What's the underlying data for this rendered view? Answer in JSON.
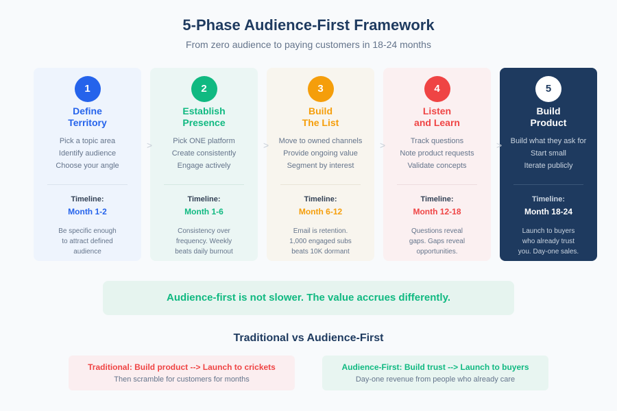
{
  "header": {
    "title": "5-Phase Audience-First Framework",
    "subtitle": "From zero audience to paying customers in 18-24 months"
  },
  "separator": ">",
  "phases": [
    {
      "number": 1,
      "title": [
        "Define",
        "Territory"
      ],
      "items": [
        "Pick a topic area",
        "Identify audience",
        "Choose your angle"
      ],
      "timeline_label": "Timeline:",
      "timeline": "Month 1-2",
      "note": [
        "Be specific enough",
        "to attract defined",
        "audience"
      ]
    },
    {
      "number": 2,
      "title": [
        "Establish",
        "Presence"
      ],
      "items": [
        "Pick ONE platform",
        "Create consistently",
        "Engage actively"
      ],
      "timeline_label": "Timeline:",
      "timeline": "Month 1-6",
      "note": [
        "Consistency over",
        "frequency. Weekly",
        "beats daily burnout"
      ]
    },
    {
      "number": 3,
      "title": [
        "Build",
        "The List"
      ],
      "items": [
        "Move to owned channels",
        "Provide ongoing value",
        "Segment by interest"
      ],
      "timeline_label": "Timeline:",
      "timeline": "Month 6-12",
      "note": [
        "Email is retention.",
        "1,000 engaged subs",
        "beats 10K dormant"
      ]
    },
    {
      "number": 4,
      "title": [
        "Listen",
        "and Learn"
      ],
      "items": [
        "Track questions",
        "Note product requests",
        "Validate concepts"
      ],
      "timeline_label": "Timeline:",
      "timeline": "Month 12-18",
      "note": [
        "Questions reveal",
        "gaps. Gaps reveal",
        "opportunities."
      ]
    },
    {
      "number": 5,
      "title": [
        "Build",
        "Product"
      ],
      "items": [
        "Build what they ask for",
        "Start small",
        "Iterate publicly"
      ],
      "timeline_label": "Timeline:",
      "timeline": "Month 18-24",
      "note": [
        "Launch to buyers",
        "who already trust",
        "you. Day-one sales."
      ]
    }
  ],
  "callout": "Audience-first is not slower. The value accrues differently.",
  "comparison": {
    "title": "Traditional vs Audience-First",
    "traditional": {
      "headline": "Traditional: Build product --> Launch to crickets",
      "detail": "Then scramble for customers for months"
    },
    "audience_first": {
      "headline": "Audience-First: Build trust --> Launch to buyers",
      "detail": "Day-one revenue from people who already care"
    }
  }
}
